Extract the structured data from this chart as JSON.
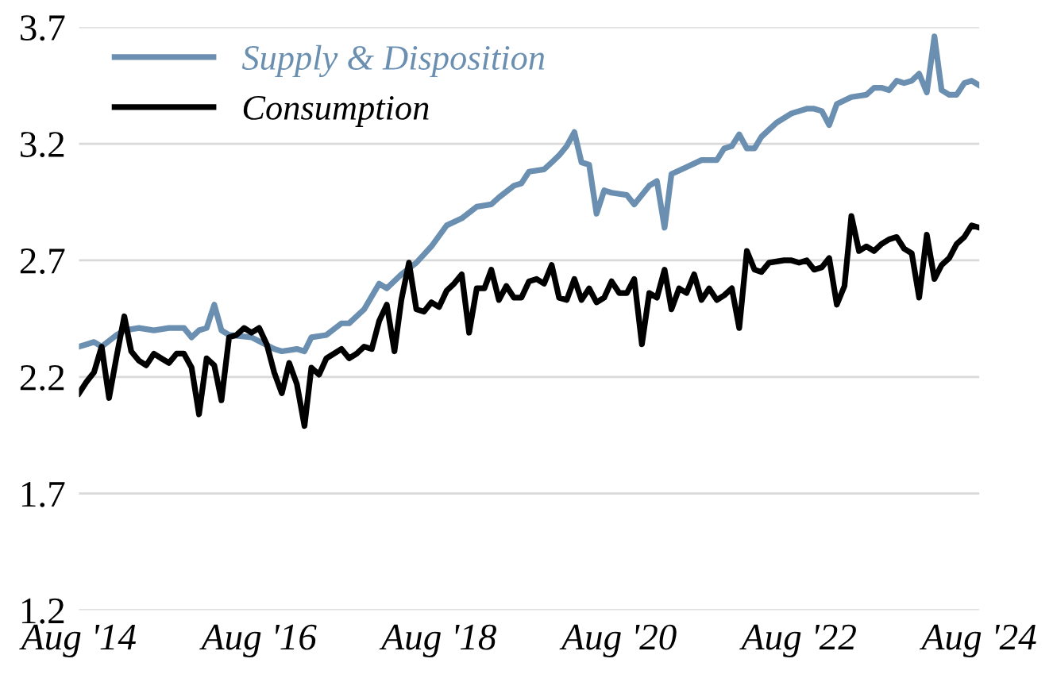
{
  "chart_data": {
    "type": "line",
    "ylim": [
      1.2,
      3.7
    ],
    "yticks": [
      1.2,
      1.7,
      2.2,
      2.7,
      3.2,
      3.7
    ],
    "xlim": [
      "2014-08",
      "2024-08"
    ],
    "xticks": [
      {
        "value": "2014-08",
        "label": "Aug '14"
      },
      {
        "value": "2016-08",
        "label": "Aug '16"
      },
      {
        "value": "2018-08",
        "label": "Aug '18"
      },
      {
        "value": "2020-08",
        "label": "Aug '20"
      },
      {
        "value": "2022-08",
        "label": "Aug '22"
      },
      {
        "value": "2024-08",
        "label": "Aug '24"
      }
    ],
    "grid": "y",
    "legend": "top left",
    "marker": "none",
    "line_style": "solid",
    "series": [
      {
        "name": "Supply & Disposition",
        "color": "#6a8fb0",
        "x": [
          "2014-08",
          "2014-09",
          "2014-10",
          "2014-11",
          "2015-01",
          "2015-02",
          "2015-04",
          "2015-06",
          "2015-08",
          "2015-10",
          "2015-11",
          "2015-12",
          "2016-01",
          "2016-02",
          "2016-03",
          "2016-04",
          "2016-07",
          "2016-10",
          "2016-11",
          "2017-01",
          "2017-02",
          "2017-03",
          "2017-05",
          "2017-07",
          "2017-08",
          "2017-10",
          "2017-12",
          "2018-01",
          "2018-03",
          "2018-05",
          "2018-07",
          "2018-09",
          "2018-11",
          "2019-01",
          "2019-03",
          "2019-04",
          "2019-06",
          "2019-07",
          "2019-08",
          "2019-10",
          "2019-11",
          "2019-12",
          "2020-01",
          "2020-02",
          "2020-03",
          "2020-04",
          "2020-05",
          "2020-06",
          "2020-07",
          "2020-09",
          "2020-10",
          "2020-12",
          "2021-01",
          "2021-02",
          "2021-03",
          "2021-05",
          "2021-07",
          "2021-09",
          "2021-10",
          "2021-11",
          "2021-12",
          "2022-01",
          "2022-02",
          "2022-03",
          "2022-05",
          "2022-07",
          "2022-09",
          "2022-10",
          "2022-11",
          "2022-12",
          "2023-01",
          "2023-03",
          "2023-05",
          "2023-06",
          "2023-07",
          "2023-08",
          "2023-09",
          "2023-10",
          "2023-11",
          "2023-12",
          "2024-01",
          "2024-02",
          "2024-03",
          "2024-04",
          "2024-05",
          "2024-06",
          "2024-07",
          "2024-08"
        ],
        "values": [
          2.33,
          2.34,
          2.35,
          2.33,
          2.38,
          2.4,
          2.41,
          2.4,
          2.41,
          2.41,
          2.37,
          2.4,
          2.41,
          2.51,
          2.4,
          2.38,
          2.37,
          2.32,
          2.31,
          2.32,
          2.31,
          2.37,
          2.38,
          2.43,
          2.43,
          2.49,
          2.6,
          2.58,
          2.64,
          2.69,
          2.76,
          2.85,
          2.88,
          2.93,
          2.94,
          2.97,
          3.02,
          3.03,
          3.08,
          3.09,
          3.12,
          3.15,
          3.19,
          3.25,
          3.12,
          3.11,
          2.9,
          3.0,
          2.99,
          2.98,
          2.94,
          3.02,
          3.04,
          2.84,
          3.07,
          3.1,
          3.13,
          3.13,
          3.18,
          3.19,
          3.24,
          3.18,
          3.18,
          3.23,
          3.29,
          3.33,
          3.35,
          3.35,
          3.34,
          3.28,
          3.37,
          3.4,
          3.41,
          3.44,
          3.44,
          3.43,
          3.47,
          3.46,
          3.47,
          3.5,
          3.42,
          3.66,
          3.43,
          3.41,
          3.41,
          3.46,
          3.47,
          3.45
        ]
      },
      {
        "name": "Consumption",
        "color": "#000000",
        "x": [
          "2014-08",
          "2014-09",
          "2014-10",
          "2014-11",
          "2014-12",
          "2015-01",
          "2015-02",
          "2015-03",
          "2015-04",
          "2015-05",
          "2015-06",
          "2015-07",
          "2015-08",
          "2015-09",
          "2015-10",
          "2015-11",
          "2015-12",
          "2016-01",
          "2016-02",
          "2016-03",
          "2016-04",
          "2016-05",
          "2016-06",
          "2016-07",
          "2016-08",
          "2016-09",
          "2016-10",
          "2016-11",
          "2016-12",
          "2017-01",
          "2017-02",
          "2017-03",
          "2017-04",
          "2017-05",
          "2017-06",
          "2017-07",
          "2017-08",
          "2017-09",
          "2017-10",
          "2017-11",
          "2017-12",
          "2018-01",
          "2018-02",
          "2018-03",
          "2018-04",
          "2018-05",
          "2018-06",
          "2018-07",
          "2018-08",
          "2018-09",
          "2018-10",
          "2018-11",
          "2018-12",
          "2019-01",
          "2019-02",
          "2019-03",
          "2019-04",
          "2019-05",
          "2019-06",
          "2019-07",
          "2019-08",
          "2019-09",
          "2019-10",
          "2019-11",
          "2019-12",
          "2020-01",
          "2020-02",
          "2020-03",
          "2020-04",
          "2020-05",
          "2020-06",
          "2020-07",
          "2020-08",
          "2020-09",
          "2020-10",
          "2020-11",
          "2020-12",
          "2021-01",
          "2021-02",
          "2021-03",
          "2021-04",
          "2021-05",
          "2021-06",
          "2021-07",
          "2021-08",
          "2021-09",
          "2021-10",
          "2021-11",
          "2021-12",
          "2022-01",
          "2022-02",
          "2022-03",
          "2022-04",
          "2022-06",
          "2022-07",
          "2022-08",
          "2022-09",
          "2022-10",
          "2022-11",
          "2022-12",
          "2023-01",
          "2023-02",
          "2023-03",
          "2023-04",
          "2023-05",
          "2023-06",
          "2023-07",
          "2023-08",
          "2023-09",
          "2023-10",
          "2023-11",
          "2023-12",
          "2024-01",
          "2024-02",
          "2024-03",
          "2024-04",
          "2024-05",
          "2024-06",
          "2024-07",
          "2024-08"
        ],
        "values": [
          2.13,
          2.18,
          2.22,
          2.33,
          2.11,
          2.29,
          2.46,
          2.31,
          2.27,
          2.25,
          2.3,
          2.28,
          2.26,
          2.3,
          2.3,
          2.24,
          2.04,
          2.28,
          2.25,
          2.1,
          2.37,
          2.38,
          2.41,
          2.39,
          2.41,
          2.34,
          2.22,
          2.13,
          2.26,
          2.17,
          1.99,
          2.24,
          2.21,
          2.28,
          2.3,
          2.32,
          2.28,
          2.3,
          2.33,
          2.32,
          2.44,
          2.51,
          2.31,
          2.53,
          2.69,
          2.49,
          2.48,
          2.52,
          2.5,
          2.57,
          2.6,
          2.64,
          2.39,
          2.58,
          2.58,
          2.66,
          2.53,
          2.59,
          2.54,
          2.54,
          2.61,
          2.62,
          2.6,
          2.68,
          2.54,
          2.53,
          2.62,
          2.53,
          2.58,
          2.52,
          2.54,
          2.61,
          2.56,
          2.56,
          2.62,
          2.34,
          2.56,
          2.54,
          2.66,
          2.49,
          2.58,
          2.56,
          2.64,
          2.53,
          2.58,
          2.53,
          2.55,
          2.58,
          2.41,
          2.74,
          2.66,
          2.65,
          2.69,
          2.7,
          2.7,
          2.69,
          2.7,
          2.66,
          2.67,
          2.71,
          2.51,
          2.59,
          2.89,
          2.74,
          2.76,
          2.74,
          2.77,
          2.79,
          2.8,
          2.75,
          2.73,
          2.54,
          2.81,
          2.62,
          2.68,
          2.71,
          2.77,
          2.8,
          2.85,
          2.84
        ]
      }
    ]
  }
}
